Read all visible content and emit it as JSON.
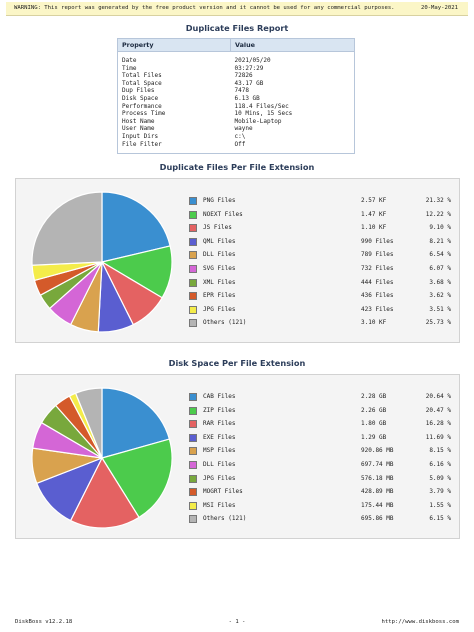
{
  "warning": {
    "text": "WARNING: This report was generated by the free product version and it cannot be used for any commercial purposes.",
    "date": "20-May-2021"
  },
  "report": {
    "title": "Duplicate Files Report",
    "headers": [
      "Property",
      "Value"
    ],
    "rows": [
      [
        "Date",
        "2021/05/20"
      ],
      [
        "Time",
        "03:27:29"
      ],
      [
        "Total Files",
        "72826"
      ],
      [
        "Total Space",
        "43.17 GB"
      ],
      [
        "Dup Files",
        "7478"
      ],
      [
        "Disk Space",
        "6.13 GB"
      ],
      [
        "Performance",
        "118.4 Files/Sec"
      ],
      [
        "Process Time",
        "10 Mins, 15 Secs"
      ],
      [
        "Host Name",
        "Mobile-Laptop"
      ],
      [
        "User Name",
        "wayne"
      ],
      [
        "Input Dirs",
        "c:\\"
      ],
      [
        "File Filter",
        "Off"
      ]
    ]
  },
  "chart_data": [
    {
      "type": "pie",
      "title": "Duplicate Files Per File Extension",
      "slices": [
        {
          "label": "PNG Files",
          "value": "2.57 KF",
          "percent": 21.32,
          "percent_label": "21.32 %",
          "color": "#3a8fd0"
        },
        {
          "label": "NOEXT Files",
          "value": "1.47 KF",
          "percent": 12.22,
          "percent_label": "12.22 %",
          "color": "#4ccb4c"
        },
        {
          "label": "JS Files",
          "value": "1.10 KF",
          "percent": 9.1,
          "percent_label": "9.10 %",
          "color": "#e46262"
        },
        {
          "label": "QML Files",
          "value": "990 Files",
          "percent": 8.21,
          "percent_label": "8.21 %",
          "color": "#5a5ed0"
        },
        {
          "label": "DLL Files",
          "value": "789 Files",
          "percent": 6.54,
          "percent_label": "6.54 %",
          "color": "#d9a24e"
        },
        {
          "label": "SVG Files",
          "value": "732 Files",
          "percent": 6.07,
          "percent_label": "6.07 %",
          "color": "#d466d6"
        },
        {
          "label": "XML Files",
          "value": "444 Files",
          "percent": 3.68,
          "percent_label": "3.68 %",
          "color": "#78a83c"
        },
        {
          "label": "EPR Files",
          "value": "436 Files",
          "percent": 3.62,
          "percent_label": "3.62 %",
          "color": "#d45a2a"
        },
        {
          "label": "JPG Files",
          "value": "423 Files",
          "percent": 3.51,
          "percent_label": "3.51 %",
          "color": "#f4ec4a"
        },
        {
          "label": "Others (121)",
          "value": "3.10 KF",
          "percent": 25.73,
          "percent_label": "25.73 %",
          "color": "#b4b4b4"
        }
      ]
    },
    {
      "type": "pie",
      "title": "Disk Space Per File Extension",
      "slices": [
        {
          "label": "CAB Files",
          "value": "2.28 GB",
          "percent": 20.64,
          "percent_label": "20.64 %",
          "color": "#3a8fd0"
        },
        {
          "label": "ZIP Files",
          "value": "2.26 GB",
          "percent": 20.47,
          "percent_label": "20.47 %",
          "color": "#4ccb4c"
        },
        {
          "label": "RAR Files",
          "value": "1.80 GB",
          "percent": 16.28,
          "percent_label": "16.28 %",
          "color": "#e46262"
        },
        {
          "label": "EXE Files",
          "value": "1.29 GB",
          "percent": 11.69,
          "percent_label": "11.69 %",
          "color": "#5a5ed0"
        },
        {
          "label": "MSP Files",
          "value": "920.86 MB",
          "percent": 8.15,
          "percent_label": "8.15 %",
          "color": "#d9a24e"
        },
        {
          "label": "DLL Files",
          "value": "697.74 MB",
          "percent": 6.16,
          "percent_label": "6.16 %",
          "color": "#d466d6"
        },
        {
          "label": "JPG Files",
          "value": "576.18 MB",
          "percent": 5.09,
          "percent_label": "5.09 %",
          "color": "#78a83c"
        },
        {
          "label": "MOGRT Files",
          "value": "428.89 MB",
          "percent": 3.79,
          "percent_label": "3.79 %",
          "color": "#d45a2a"
        },
        {
          "label": "MSI Files",
          "value": "175.44 MB",
          "percent": 1.55,
          "percent_label": "1.55 %",
          "color": "#f4ec4a"
        },
        {
          "label": "Others (121)",
          "value": "695.86 MB",
          "percent": 6.15,
          "percent_label": "6.15 %",
          "color": "#b4b4b4"
        }
      ]
    }
  ],
  "footer": {
    "product": "DiskBoss v12.2.18",
    "page": "- 1 -",
    "url": "http://www.diskboss.com"
  }
}
